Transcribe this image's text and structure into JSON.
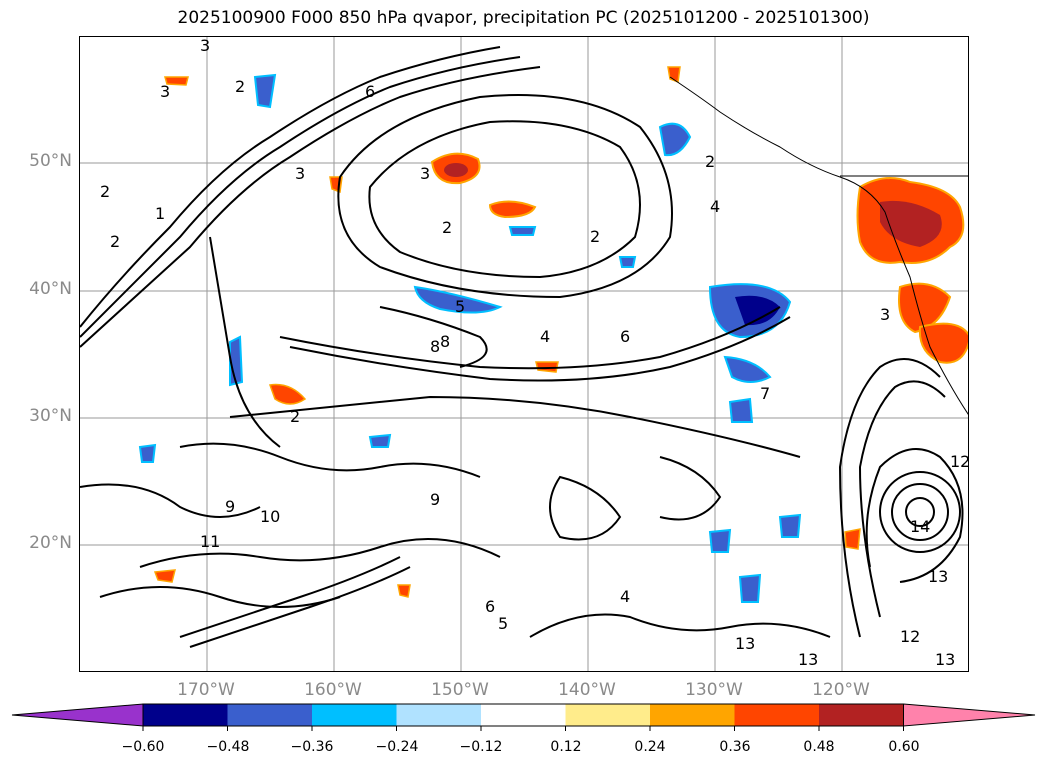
{
  "title": "2025100900 F000 850 hPa qvapor, precipitation PC (2025101200 - 2025101300)",
  "lat_labels": [
    "50°N",
    "40°N",
    "30°N",
    "20°N"
  ],
  "lon_labels": [
    "170°W",
    "160°W",
    "150°W",
    "140°W",
    "130°W",
    "120°W"
  ],
  "contour_labels": [
    "3",
    "2",
    "3",
    "2",
    "1",
    "2",
    "6",
    "3",
    "2",
    "3",
    "2",
    "4",
    "6",
    "5",
    "4",
    "2",
    "3",
    "2",
    "8",
    "9",
    "10",
    "11",
    "12",
    "13",
    "14",
    "13",
    "13",
    "13",
    "12",
    "5",
    "4",
    "6",
    "9",
    "8",
    "7"
  ],
  "colorbar": {
    "tick_labels": [
      "−0.60",
      "−0.48",
      "−0.36",
      "−0.24",
      "−0.12",
      "0.12",
      "0.24",
      "0.36",
      "0.48",
      "0.60"
    ],
    "colors": [
      "#9932cc",
      "#00008b",
      "#3a5fcd",
      "#00bfff",
      "#b0e2ff",
      "#ffffff",
      "#ffec8b",
      "#ffa500",
      "#ff4500",
      "#b22222",
      "#ff82ab"
    ]
  }
}
